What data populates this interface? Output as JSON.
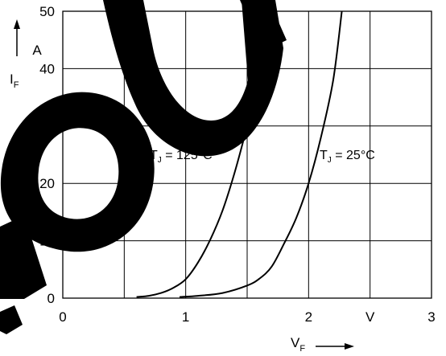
{
  "chart_data": {
    "type": "line",
    "title": "",
    "xlabel": "V",
    "xlabel_sub": "F",
    "ylabel": "I",
    "ylabel_sub": "F",
    "x_unit": "V",
    "y_unit": "A",
    "xlim": [
      0,
      3
    ],
    "ylim": [
      0,
      50
    ],
    "x_ticks": [
      0,
      1,
      2,
      3
    ],
    "y_ticks": [
      0,
      10,
      20,
      30,
      40,
      50
    ],
    "grid": true,
    "series": [
      {
        "name": "T_J = 125°C",
        "label_main": "T",
        "label_sub": "J",
        "label_rest": " = 125°C",
        "x": [
          0.6,
          0.7,
          0.8,
          0.9,
          1.0,
          1.1,
          1.2,
          1.3,
          1.4,
          1.5,
          1.6,
          1.7
        ],
        "y": [
          0.2,
          0.4,
          0.9,
          1.8,
          3.3,
          6.2,
          10.2,
          15.3,
          22.0,
          30.0,
          38.7,
          50.0
        ]
      },
      {
        "name": "T_J = 25°C",
        "label_main": "T",
        "label_sub": "J",
        "label_rest": " = 25°C",
        "x": [
          0.95,
          1.1,
          1.3,
          1.5,
          1.6,
          1.7,
          1.8,
          1.9,
          2.0,
          2.1,
          2.2,
          2.27
        ],
        "y": [
          0.2,
          0.4,
          0.9,
          2.2,
          3.4,
          5.5,
          9.5,
          14.0,
          20.0,
          28.0,
          38.0,
          50.0
        ]
      }
    ]
  }
}
